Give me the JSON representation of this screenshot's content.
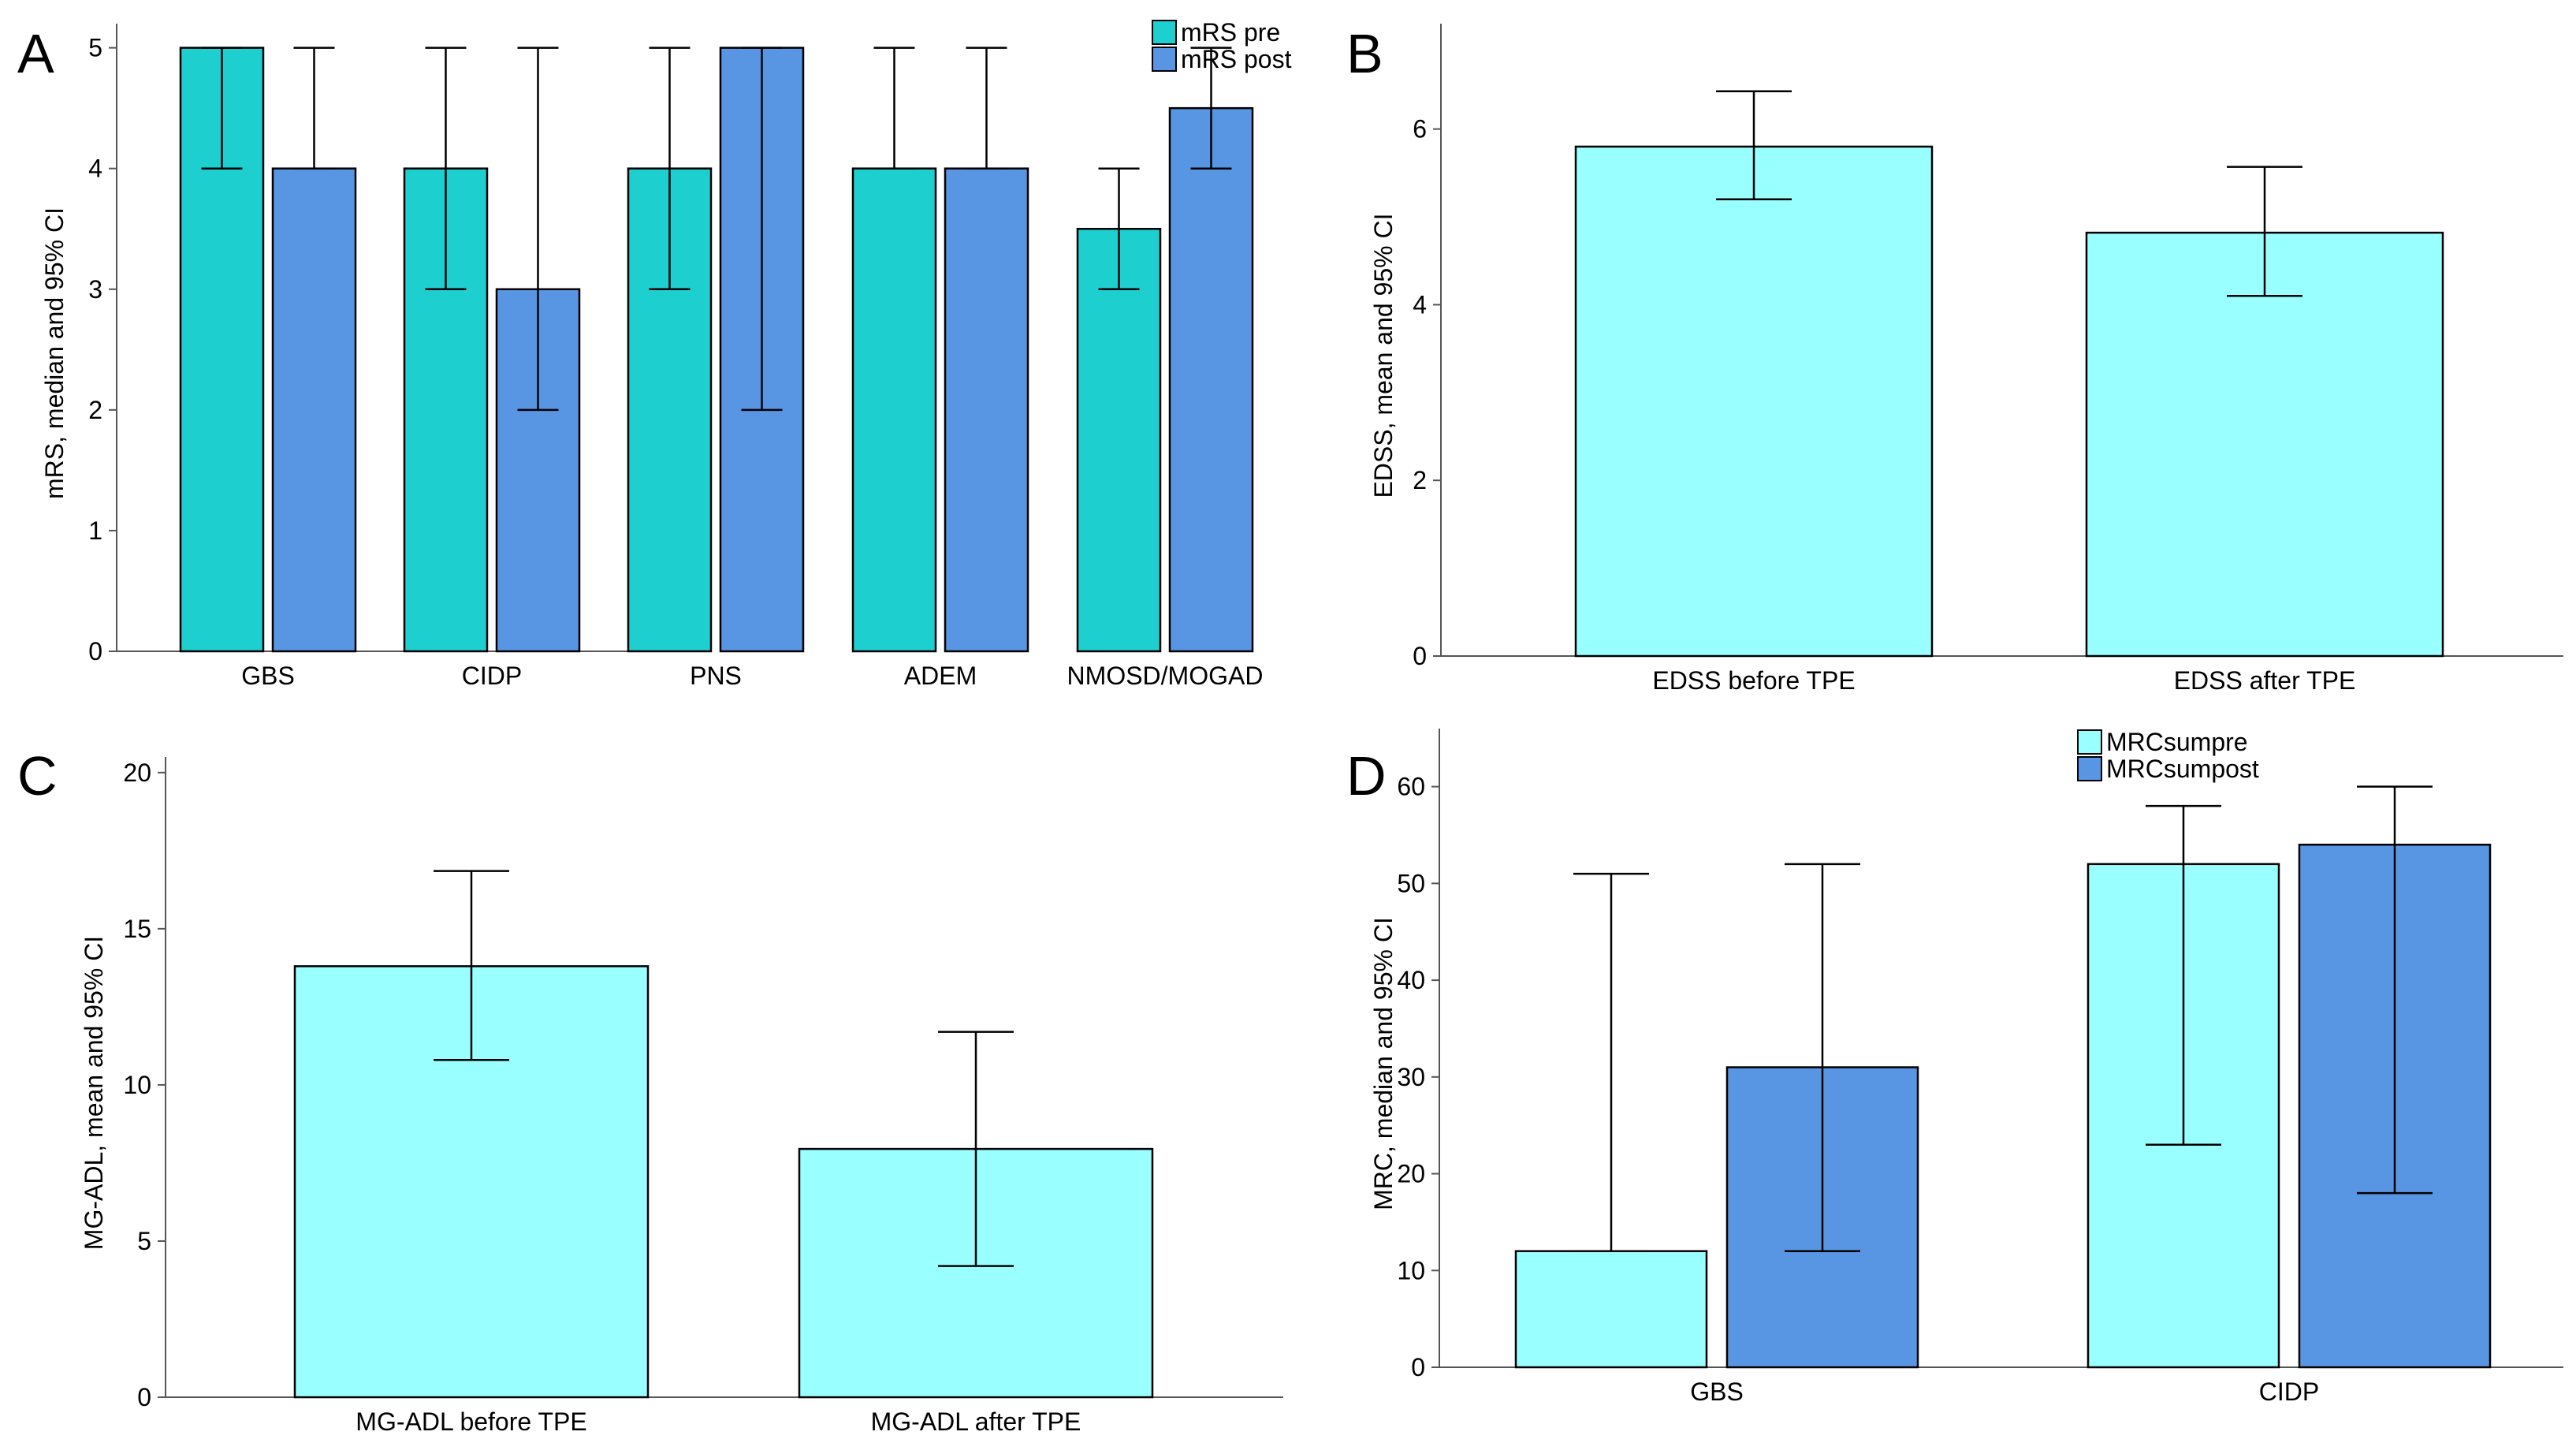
{
  "colors": {
    "teal": "#1ECFCF",
    "blue": "#5896E4",
    "cyan": "#9AFFFF",
    "stroke": "#000000",
    "axis": "#555555"
  },
  "chart_data": [
    {
      "panel": "A",
      "type": "bar",
      "ylabel": "mRS, median and 95% CI",
      "ylim": [
        0,
        5.2
      ],
      "yticks": [
        0,
        1,
        2,
        3,
        4,
        5
      ],
      "categories": [
        "GBS",
        "CIDP",
        "PNS",
        "ADEM",
        "NMOSD/MOGAD"
      ],
      "legend": {
        "position": "top-right",
        "entries": [
          "mRS pre",
          "mRS post"
        ]
      },
      "series": [
        {
          "name": "mRS pre",
          "color": "teal",
          "values": [
            5,
            4,
            4,
            4,
            3.5
          ],
          "ci": [
            [
              4,
              5
            ],
            [
              3,
              5
            ],
            [
              3,
              5
            ],
            [
              4,
              5
            ],
            [
              3,
              4
            ]
          ]
        },
        {
          "name": "mRS post",
          "color": "blue",
          "values": [
            4,
            3,
            5,
            4,
            4.5
          ],
          "ci": [
            [
              4,
              5
            ],
            [
              2,
              5
            ],
            [
              2,
              5
            ],
            [
              4,
              5
            ],
            [
              4,
              5
            ]
          ]
        }
      ]
    },
    {
      "panel": "B",
      "type": "bar",
      "ylabel": "EDSS, mean and 95% CI",
      "ylim": [
        0,
        7.2
      ],
      "yticks": [
        0,
        2,
        4,
        6
      ],
      "categories": [
        "EDSS before TPE",
        "EDSS after TPE"
      ],
      "series": [
        {
          "name": "EDSS",
          "color": "cyan",
          "values": [
            5.8,
            4.82
          ],
          "ci": [
            [
              5.2,
              6.43
            ],
            [
              4.1,
              5.57
            ]
          ]
        }
      ]
    },
    {
      "panel": "C",
      "type": "bar",
      "ylabel": "MG-ADL, mean and 95% CI",
      "ylim": [
        0,
        20.5
      ],
      "yticks": [
        0,
        5,
        10,
        15,
        20
      ],
      "categories": [
        "MG-ADL before TPE",
        "MG-ADL after TPE"
      ],
      "series": [
        {
          "name": "MG-ADL",
          "color": "cyan",
          "values": [
            13.8,
            7.95
          ],
          "ci": [
            [
              10.8,
              16.85
            ],
            [
              4.2,
              11.7
            ]
          ]
        }
      ]
    },
    {
      "panel": "D",
      "type": "bar",
      "ylabel": "MRC, median and 95% CI",
      "ylim": [
        0,
        66
      ],
      "yticks": [
        0,
        10,
        20,
        30,
        40,
        50,
        60
      ],
      "categories": [
        "GBS",
        "CIDP"
      ],
      "legend": {
        "position": "top-center",
        "entries": [
          "MRCsumpre",
          "MRCsumpost"
        ]
      },
      "series": [
        {
          "name": "MRCsumpre",
          "color": "cyan",
          "values": [
            12,
            52
          ],
          "ci": [
            [
              12,
              51
            ],
            [
              23,
              58
            ]
          ]
        },
        {
          "name": "MRCsumpost",
          "color": "blue",
          "values": [
            31,
            54
          ],
          "ci": [
            [
              12,
              52
            ],
            [
              18,
              60
            ]
          ]
        }
      ]
    }
  ]
}
